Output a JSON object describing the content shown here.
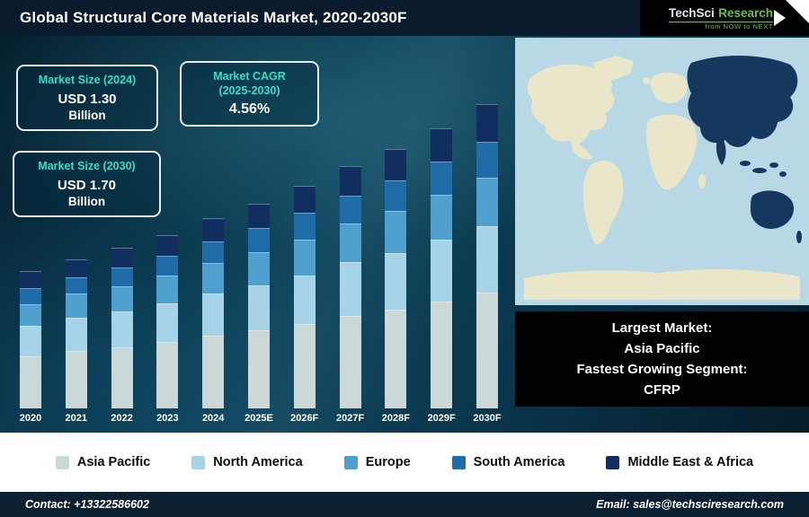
{
  "header": {
    "title": "Global Structural Core Materials Market, 2020-2030F",
    "logo": {
      "name_part1": "TechSci",
      "name_part2": "Research",
      "tagline": "from NOW to NEXT"
    }
  },
  "info_boxes": {
    "size_2024": {
      "title": "Market Size (2024)",
      "value": "USD 1.30",
      "unit": "Billion"
    },
    "cagr": {
      "title_line1": "Market CAGR",
      "title_line2": "(2025-2030)",
      "value": "4.56%"
    },
    "size_2030": {
      "title": "Market Size (2030)",
      "value": "USD 1.70",
      "unit": "Billion"
    }
  },
  "chart_data": {
    "type": "bar",
    "stacked": true,
    "unit": "USD Billion",
    "title": "Global Structural Core Materials Market, 2020-2030F",
    "categories": [
      "2020",
      "2021",
      "2022",
      "2023",
      "2024",
      "2025E",
      "2026F",
      "2027F",
      "2028F",
      "2029F",
      "2030F"
    ],
    "series": [
      {
        "name": "Asia Pacific",
        "color": "#ccd8d8",
        "values": [
          0.43,
          0.45,
          0.46,
          0.48,
          0.5,
          0.52,
          0.54,
          0.57,
          0.59,
          0.62,
          0.65
        ]
      },
      {
        "name": "North America",
        "color": "#a6d3e8",
        "values": [
          0.25,
          0.26,
          0.27,
          0.28,
          0.29,
          0.3,
          0.31,
          0.33,
          0.34,
          0.36,
          0.37
        ]
      },
      {
        "name": "Europe",
        "color": "#4f9fcf",
        "values": [
          0.18,
          0.19,
          0.19,
          0.2,
          0.21,
          0.22,
          0.23,
          0.24,
          0.25,
          0.26,
          0.27
        ]
      },
      {
        "name": "South America",
        "color": "#1f6ca8",
        "values": [
          0.13,
          0.13,
          0.14,
          0.14,
          0.15,
          0.16,
          0.17,
          0.17,
          0.18,
          0.19,
          0.2
        ]
      },
      {
        "name": "Middle East & Africa",
        "color": "#102f5e",
        "values": [
          0.14,
          0.14,
          0.15,
          0.15,
          0.16,
          0.16,
          0.17,
          0.18,
          0.19,
          0.19,
          0.21
        ]
      }
    ],
    "totals": [
      1.13,
      1.17,
      1.21,
      1.25,
      1.31,
      1.36,
      1.42,
      1.49,
      1.55,
      1.62,
      1.7
    ],
    "legend_position": "bottom",
    "grid": false,
    "annotations": {
      "market_size_2024": "USD 1.30 Billion",
      "market_size_2030": "USD 1.70 Billion",
      "cagr_2025_2030": "4.56%"
    }
  },
  "largest_market_box": {
    "lines": [
      "Largest Market:",
      "Asia Pacific",
      "Fastest Growing Segment:",
      "CFRP"
    ]
  },
  "footer": {
    "contact": "Contact: +13322586602",
    "email": "Email: sales@techsciresearch.com"
  },
  "colors": {
    "title_bar": "#0a1b2e",
    "stage_teal": "#0d4259",
    "accent_teal": "#35dec8",
    "logo_green": "#6abf4b",
    "caption_bg": "#000000",
    "footer_bg": "#0b2132",
    "map_ocean": "#b9d8e6",
    "map_land": "#e9e6c9",
    "map_highlight": "#16385e"
  }
}
